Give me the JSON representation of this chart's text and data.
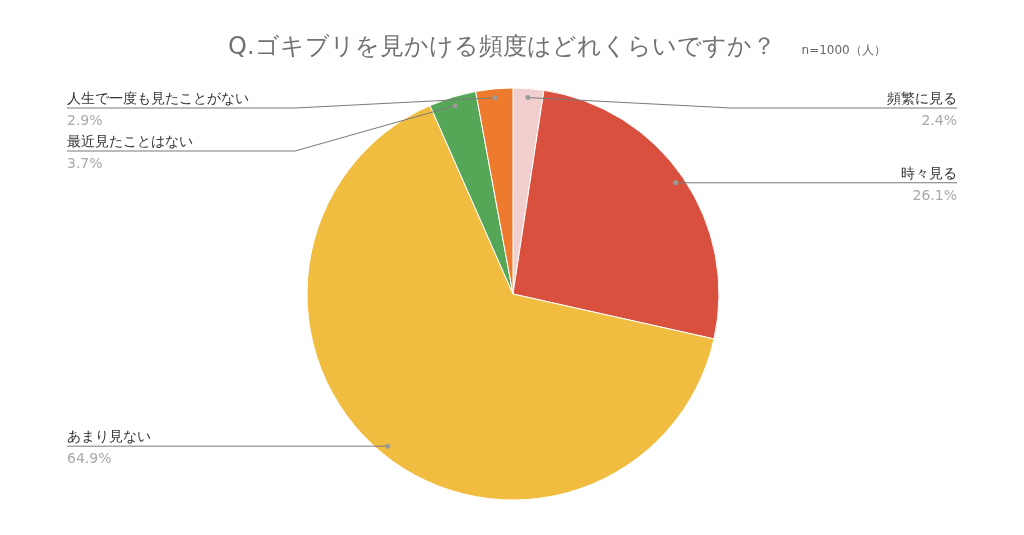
{
  "chart_data": {
    "type": "pie",
    "title": "Q.ゴキブリを見かける頻度はどれくらいですか？",
    "subtitle": "n=1000（人）",
    "categories": [
      "頻繁に見る",
      "時々見る",
      "あまり見ない",
      "最近見たことはない",
      "人生で一度も見たことがない"
    ],
    "values": [
      2.4,
      26.1,
      64.9,
      3.7,
      2.9
    ],
    "colors": [
      "#f2cfcf",
      "#d9503f",
      "#f1bd40",
      "#55a757",
      "#ee7a2e"
    ],
    "value_labels": [
      "2.4%",
      "26.1%",
      "64.9%",
      "3.7%",
      "2.9%"
    ]
  }
}
